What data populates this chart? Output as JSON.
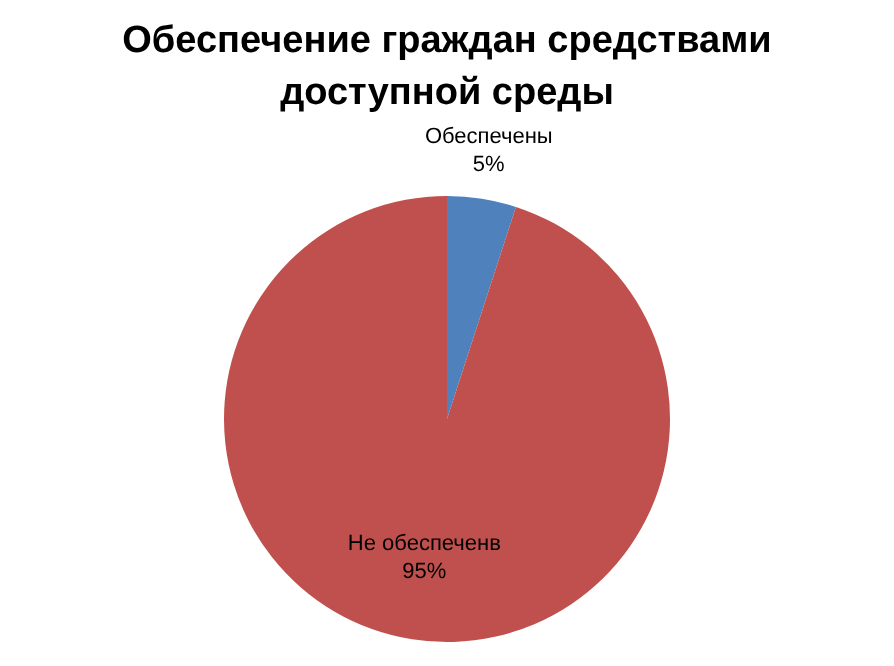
{
  "chart_data": {
    "type": "pie",
    "title": "Обеспечение граждан средствами доступной среды",
    "categories": [
      "Обеспечены",
      "Не обеспеченв"
    ],
    "values": [
      5,
      95
    ],
    "colors": [
      "#4f81bd",
      "#c0504d"
    ],
    "value_labels": [
      "5%",
      "95%"
    ],
    "legend": false
  }
}
